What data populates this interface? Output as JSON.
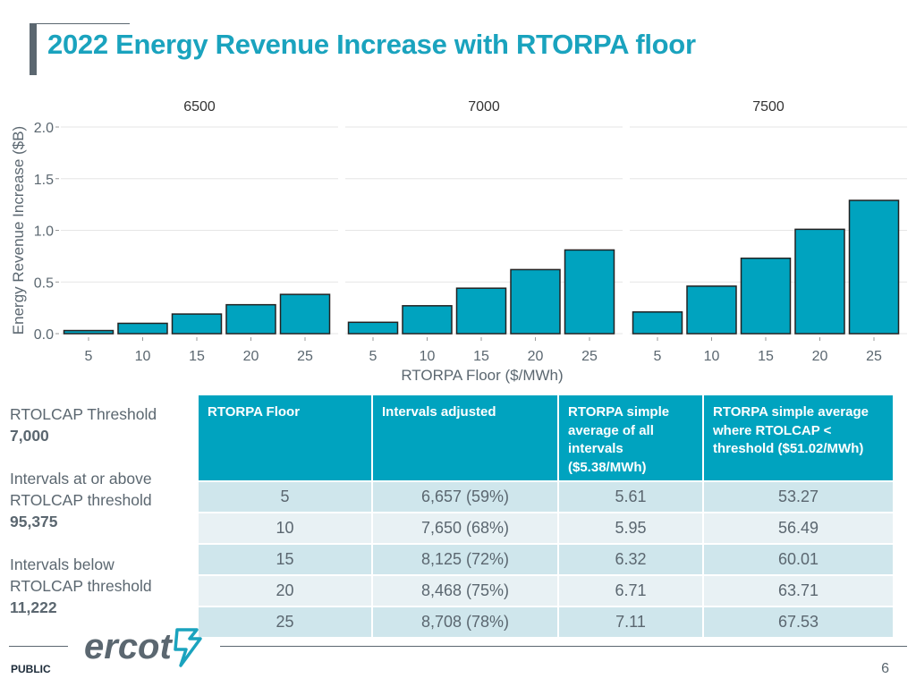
{
  "title": "2022 Energy Revenue Increase with RTORPA floor",
  "colors": {
    "accent": "#1aa3be",
    "bar": "#00a3bf",
    "text": "#5b6770"
  },
  "chart_data": {
    "type": "bar",
    "xlabel": "RTORPA Floor ($/MWh)",
    "ylabel": "Energy Revenue Increase ($B)",
    "ylim": [
      0,
      2.0
    ],
    "yticks": [
      "0.0",
      "0.5",
      "1.0",
      "1.5",
      "2.0"
    ],
    "ytick_values": [
      0,
      0.5,
      1.0,
      1.5,
      2.0
    ],
    "categories": [
      "5",
      "10",
      "15",
      "20",
      "25"
    ],
    "panels": [
      {
        "name": "6500",
        "values": [
          0.03,
          0.1,
          0.19,
          0.28,
          0.38
        ]
      },
      {
        "name": "7000",
        "values": [
          0.11,
          0.27,
          0.44,
          0.62,
          0.81
        ]
      },
      {
        "name": "7500",
        "values": [
          0.21,
          0.46,
          0.73,
          1.01,
          1.29
        ]
      }
    ]
  },
  "sidebar": {
    "threshold_label": "RTOLCAP Threshold",
    "threshold_value": "7,000",
    "above_label_1": "Intervals at or above",
    "above_label_2": "RTOLCAP threshold",
    "above_value": "95,375",
    "below_label_1": "Intervals below",
    "below_label_2": "RTOLCAP threshold",
    "below_value": "11,222"
  },
  "table": {
    "headers": [
      "RTORPA Floor",
      "Intervals adjusted",
      "RTORPA simple average of all intervals ($5.38/MWh)",
      "RTORPA simple average where RTOLCAP < threshold ($51.02/MWh)"
    ],
    "rows": [
      [
        "5",
        "6,657 (59%)",
        "5.61",
        "53.27"
      ],
      [
        "10",
        "7,650 (68%)",
        "5.95",
        "56.49"
      ],
      [
        "15",
        "8,125 (72%)",
        "6.32",
        "60.01"
      ],
      [
        "20",
        "8,468 (75%)",
        "6.71",
        "63.71"
      ],
      [
        "25",
        "8,708 (78%)",
        "7.11",
        "67.53"
      ]
    ]
  },
  "footer": {
    "logo_text": "ercot",
    "classification": "PUBLIC",
    "page_number": "6"
  }
}
